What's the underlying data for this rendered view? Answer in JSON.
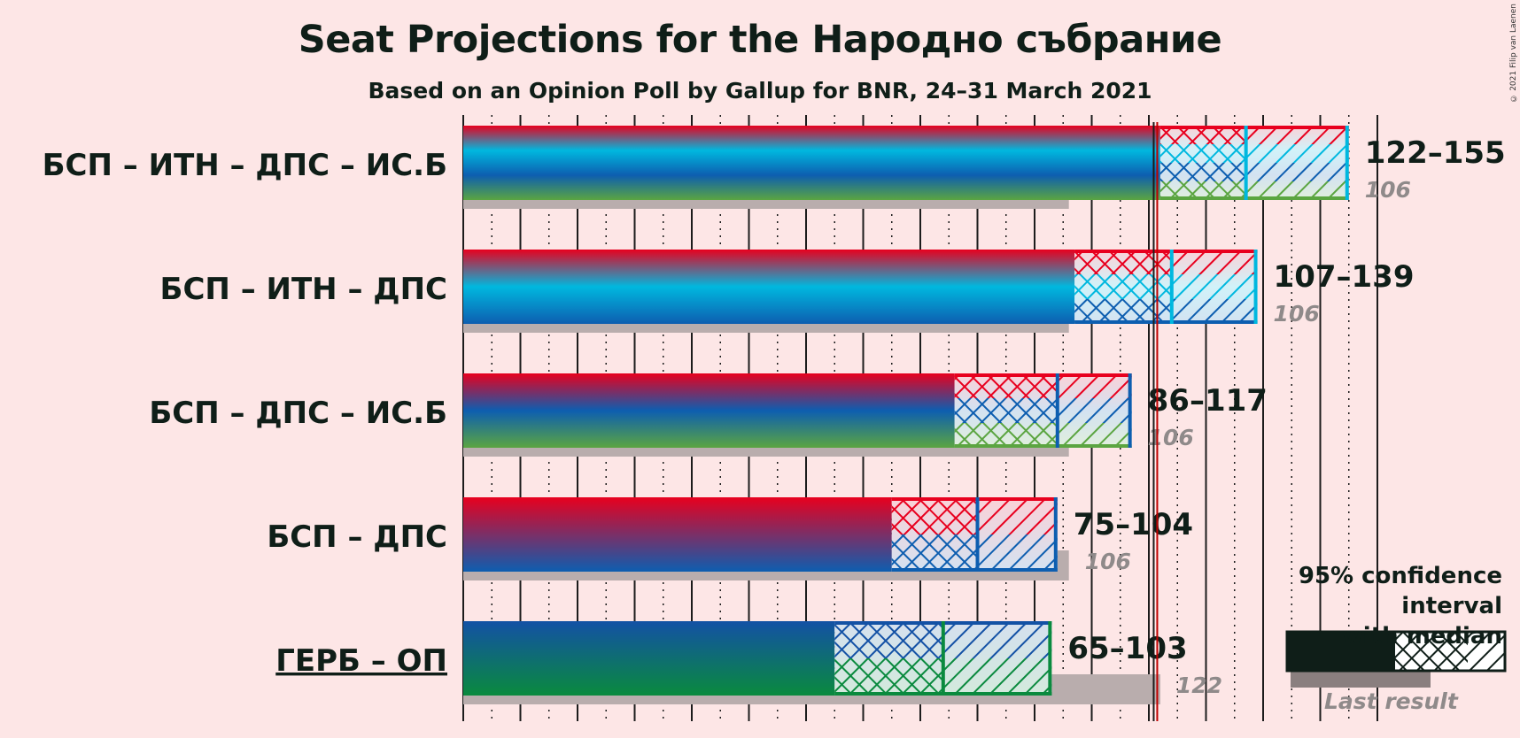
{
  "title": "Seat Projections for the Народно събрание",
  "subtitle": "Based on an Opinion Poll by Gallup for BNR, 24–31 March 2021",
  "copyright": "© 2021 Filip van Laenen",
  "legend": {
    "line1": "95% confidence interval",
    "line2": "with median",
    "last_result": "Last result"
  },
  "colors": {
    "background": "#fde6e6",
    "БСП": "#e8001e",
    "ИТН": "#00b8df",
    "ДПС": "#0d5eb0",
    "ИС.Б": "#5ba541",
    "ГЕРБ": "#1351a5",
    "ОП": "#0a8a3e",
    "majority_line": "#c00000",
    "last_result_bar": "#b9adad"
  },
  "chart_data": {
    "type": "bar",
    "x_range": [
      0,
      160
    ],
    "majority": 121,
    "rows": [
      {
        "label": "БСП – ИТН – ДПС – ИС.Б",
        "underline": false,
        "parties": [
          "БСП",
          "ИТН",
          "ДПС",
          "ИС.Б"
        ],
        "low": 122,
        "median": 137,
        "high": 155,
        "last": 106,
        "range_text": "122–155",
        "last_text": "106"
      },
      {
        "label": "БСП – ИТН – ДПС",
        "underline": false,
        "parties": [
          "БСП",
          "ИТН",
          "ДПС"
        ],
        "low": 107,
        "median": 124,
        "high": 139,
        "last": 106,
        "range_text": "107–139",
        "last_text": "106"
      },
      {
        "label": "БСП – ДПС – ИС.Б",
        "underline": false,
        "parties": [
          "БСП",
          "ДПС",
          "ИС.Б"
        ],
        "low": 86,
        "median": 104,
        "high": 117,
        "last": 106,
        "range_text": "86–117",
        "last_text": "106"
      },
      {
        "label": "БСП – ДПС",
        "underline": false,
        "parties": [
          "БСП",
          "ДПС"
        ],
        "low": 75,
        "median": 90,
        "high": 104,
        "last": 106,
        "range_text": "75–104",
        "last_text": "106"
      },
      {
        "label": "ГЕРБ – ОП",
        "underline": true,
        "parties": [
          "ГЕРБ",
          "ОП"
        ],
        "low": 65,
        "median": 84,
        "high": 103,
        "last": 122,
        "range_text": "65–103",
        "last_text": "122"
      }
    ]
  }
}
